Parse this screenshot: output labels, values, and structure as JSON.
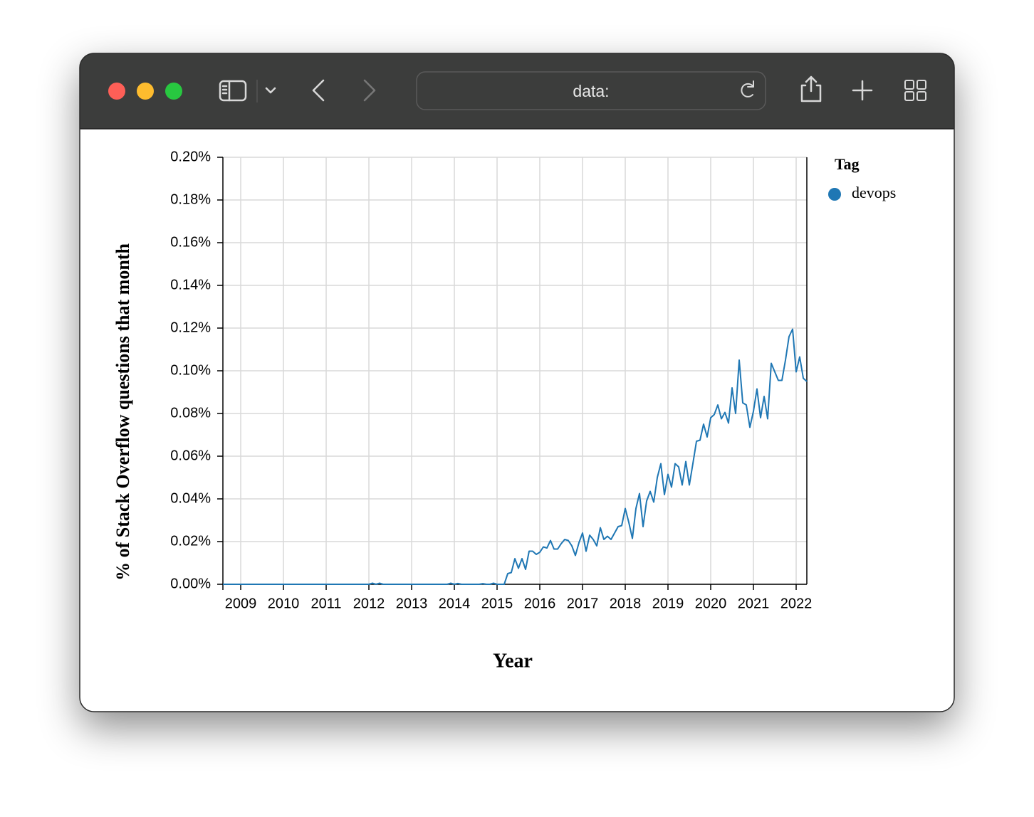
{
  "browser": {
    "url": "data:"
  },
  "chart_data": {
    "type": "line",
    "ylabel": "% of Stack Overflow questions that month",
    "xlabel": "Year",
    "legend_title": "Tag",
    "legend": "right",
    "grid": true,
    "x": [
      2008.583,
      2008.667,
      2008.75,
      2008.833,
      2008.917,
      2009,
      2009.083,
      2009.167,
      2009.25,
      2009.333,
      2009.417,
      2009.5,
      2009.583,
      2009.667,
      2009.75,
      2009.833,
      2009.917,
      2010,
      2010.083,
      2010.167,
      2010.25,
      2010.333,
      2010.417,
      2010.5,
      2010.583,
      2010.667,
      2010.75,
      2010.833,
      2010.917,
      2011,
      2011.083,
      2011.167,
      2011.25,
      2011.333,
      2011.417,
      2011.5,
      2011.583,
      2011.667,
      2011.75,
      2011.833,
      2011.917,
      2012,
      2012.083,
      2012.167,
      2012.25,
      2012.333,
      2012.417,
      2012.5,
      2012.583,
      2012.667,
      2012.75,
      2012.833,
      2012.917,
      2013,
      2013.083,
      2013.167,
      2013.25,
      2013.333,
      2013.417,
      2013.5,
      2013.583,
      2013.667,
      2013.75,
      2013.833,
      2013.917,
      2014,
      2014.083,
      2014.167,
      2014.25,
      2014.333,
      2014.417,
      2014.5,
      2014.583,
      2014.667,
      2014.75,
      2014.833,
      2014.917,
      2015,
      2015.083,
      2015.167,
      2015.25,
      2015.333,
      2015.417,
      2015.5,
      2015.583,
      2015.667,
      2015.75,
      2015.833,
      2015.917,
      2016,
      2016.083,
      2016.167,
      2016.25,
      2016.333,
      2016.417,
      2016.5,
      2016.583,
      2016.667,
      2016.75,
      2016.833,
      2016.917,
      2017,
      2017.083,
      2017.167,
      2017.25,
      2017.333,
      2017.417,
      2017.5,
      2017.583,
      2017.667,
      2017.75,
      2017.833,
      2017.917,
      2018,
      2018.083,
      2018.167,
      2018.25,
      2018.333,
      2018.417,
      2018.5,
      2018.583,
      2018.667,
      2018.75,
      2018.833,
      2018.917,
      2019,
      2019.083,
      2019.167,
      2019.25,
      2019.333,
      2019.417,
      2019.5,
      2019.583,
      2019.667,
      2019.75,
      2019.833,
      2019.917,
      2020,
      2020.083,
      2020.167,
      2020.25,
      2020.333,
      2020.417,
      2020.5,
      2020.583,
      2020.667,
      2020.75,
      2020.833,
      2020.917,
      2021,
      2021.083,
      2021.167,
      2021.25,
      2021.333,
      2021.417,
      2021.5,
      2021.583,
      2021.667,
      2021.75,
      2021.833,
      2021.917,
      2022,
      2022.083,
      2022.167,
      2022.25
    ],
    "series": [
      {
        "name": "devops",
        "color": "#1f77b4",
        "values": [
          0,
          0,
          0,
          0,
          0,
          0,
          0,
          0,
          0,
          0,
          0,
          0,
          0,
          0,
          0,
          0,
          0,
          0,
          0,
          0,
          0,
          0,
          0,
          0,
          0,
          0,
          0,
          0,
          0,
          0,
          0,
          0,
          0,
          0,
          0,
          0,
          0,
          0,
          0,
          0,
          0,
          0,
          0.0005,
          0,
          0.0005,
          0,
          0,
          0,
          0,
          0,
          0,
          0,
          0,
          0,
          0,
          0,
          0,
          0,
          0,
          0,
          0,
          0,
          0,
          0,
          0.0005,
          0,
          0.0004,
          0,
          0,
          0,
          0,
          0,
          0,
          0.0003,
          0,
          0,
          0.0005,
          0,
          0,
          0,
          0.005,
          0.0055,
          0.012,
          0.0075,
          0.012,
          0.007,
          0.0155,
          0.0155,
          0.014,
          0.015,
          0.0175,
          0.017,
          0.0205,
          0.0165,
          0.0165,
          0.019,
          0.021,
          0.0205,
          0.018,
          0.0135,
          0.0195,
          0.024,
          0.0155,
          0.023,
          0.021,
          0.018,
          0.0265,
          0.021,
          0.0225,
          0.021,
          0.024,
          0.027,
          0.0275,
          0.0355,
          0.029,
          0.0215,
          0.0355,
          0.0425,
          0.027,
          0.039,
          0.0435,
          0.0385,
          0.05,
          0.0565,
          0.042,
          0.0515,
          0.0455,
          0.0565,
          0.055,
          0.0465,
          0.0575,
          0.0465,
          0.0565,
          0.067,
          0.0675,
          0.075,
          0.069,
          0.078,
          0.0795,
          0.084,
          0.0775,
          0.0805,
          0.0755,
          0.092,
          0.08,
          0.105,
          0.085,
          0.084,
          0.0735,
          0.081,
          0.0915,
          0.078,
          0.088,
          0.0775,
          0.1035,
          0.0995,
          0.0955,
          0.0955,
          0.105,
          0.116,
          0.1195,
          0.0995,
          0.1065,
          0.0965,
          0.095
        ]
      }
    ],
    "xlim": [
      2008.583,
      2022.25
    ],
    "ylim": [
      0,
      0.2
    ],
    "xticks": [
      2009,
      2010,
      2011,
      2012,
      2013,
      2014,
      2015,
      2016,
      2017,
      2018,
      2019,
      2020,
      2021,
      2022
    ],
    "yticks": [
      {
        "value": 0,
        "label": "0.00%"
      },
      {
        "value": 0.02,
        "label": "0.02%"
      },
      {
        "value": 0.04,
        "label": "0.04%"
      },
      {
        "value": 0.06,
        "label": "0.06%"
      },
      {
        "value": 0.08,
        "label": "0.08%"
      },
      {
        "value": 0.1,
        "label": "0.10%"
      },
      {
        "value": 0.12,
        "label": "0.12%"
      },
      {
        "value": 0.14,
        "label": "0.14%"
      },
      {
        "value": 0.16,
        "label": "0.16%"
      },
      {
        "value": 0.18,
        "label": "0.18%"
      },
      {
        "value": 0.2,
        "label": "0.20%"
      }
    ]
  }
}
